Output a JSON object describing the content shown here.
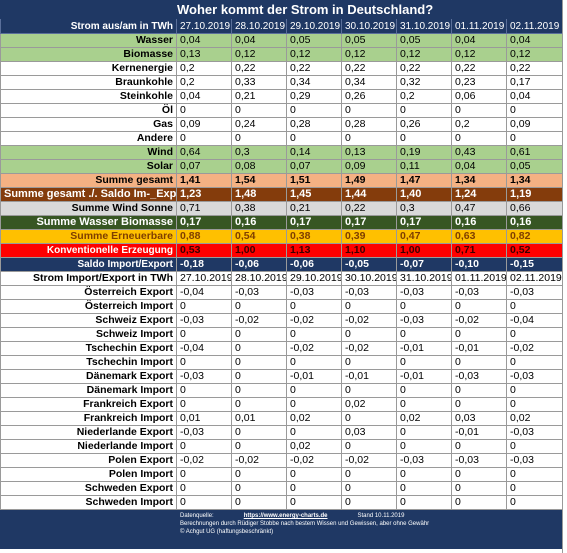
{
  "title": "Woher kommt der Strom in Deutschland?",
  "header": {
    "label": "Strom aus/am in TWh",
    "dates": [
      "27.10.2019",
      "28.10.2019",
      "29.10.2019",
      "30.10.2019",
      "31.10.2019",
      "01.11.2019",
      "02.11.2019"
    ]
  },
  "rows": [
    {
      "label": "Wasser",
      "style": "green",
      "values": [
        "0,04",
        "0,04",
        "0,05",
        "0,05",
        "0,05",
        "0,04",
        "0,04"
      ]
    },
    {
      "label": "Biomasse",
      "style": "green",
      "values": [
        "0,13",
        "0,12",
        "0,12",
        "0,12",
        "0,12",
        "0,12",
        "0,12"
      ]
    },
    {
      "label": "Kernenergie",
      "style": "white",
      "values": [
        "0,2",
        "0,22",
        "0,22",
        "0,22",
        "0,22",
        "0,22",
        "0,22"
      ]
    },
    {
      "label": "Braunkohle",
      "style": "white",
      "values": [
        "0,2",
        "0,33",
        "0,34",
        "0,34",
        "0,32",
        "0,23",
        "0,17"
      ]
    },
    {
      "label": "Steinkohle",
      "style": "white",
      "values": [
        "0,04",
        "0,21",
        "0,29",
        "0,26",
        "0,2",
        "0,06",
        "0,04"
      ]
    },
    {
      "label": "Öl",
      "style": "white",
      "values": [
        "0",
        "0",
        "0",
        "0",
        "0",
        "0",
        "0"
      ]
    },
    {
      "label": "Gas",
      "style": "white",
      "values": [
        "0,09",
        "0,24",
        "0,28",
        "0,28",
        "0,26",
        "0,2",
        "0,09"
      ]
    },
    {
      "label": "Andere",
      "style": "white",
      "values": [
        "0",
        "0",
        "0",
        "0",
        "0",
        "0",
        "0"
      ]
    },
    {
      "label": "Wind",
      "style": "green",
      "values": [
        "0,64",
        "0,3",
        "0,14",
        "0,13",
        "0,19",
        "0,43",
        "0,61"
      ]
    },
    {
      "label": "Solar",
      "style": "green",
      "values": [
        "0,07",
        "0,08",
        "0,07",
        "0,09",
        "0,11",
        "0,04",
        "0,05"
      ]
    },
    {
      "label": "Summe gesamt",
      "style": "orange",
      "values": [
        "1,41",
        "1,54",
        "1,51",
        "1,49",
        "1,47",
        "1,34",
        "1,34"
      ]
    },
    {
      "label": "Summe gesamt ./. Saldo Im-_Export",
      "style": "brown",
      "values": [
        "1,23",
        "1,48",
        "1,45",
        "1,44",
        "1,40",
        "1,24",
        "1,19"
      ]
    },
    {
      "label": "Summe Wind Sonne",
      "style": "grey",
      "values": [
        "0,71",
        "0,38",
        "0,21",
        "0,22",
        "0,3",
        "0,47",
        "0,66"
      ]
    },
    {
      "label": "Summe Wasser Biomasse",
      "style": "darkgreen",
      "values": [
        "0,17",
        "0,16",
        "0,17",
        "0,17",
        "0,17",
        "0,16",
        "0,16"
      ]
    },
    {
      "label": "Summe Erneuerbare",
      "style": "yellow",
      "values": [
        "0,88",
        "0,54",
        "0,38",
        "0,39",
        "0,47",
        "0,63",
        "0,82"
      ]
    },
    {
      "label": "Konventionelle Erzeugung",
      "style": "red",
      "values": [
        "0,53",
        "1,00",
        "1,13",
        "1,10",
        "1,00",
        "0,71",
        "0,52"
      ]
    },
    {
      "label": "Saldo Import/Export",
      "style": "navy",
      "values": [
        "-0,18",
        "-0,06",
        "-0,06",
        "-0,05",
        "-0,07",
        "-0,10",
        "-0,15"
      ]
    }
  ],
  "trade_header": {
    "label": "Strom Import/Export in TWh",
    "dates": [
      "27.10.2019",
      "28.10.2019",
      "29.10.2019",
      "30.10.2019",
      "31.10.2019",
      "01.11.2019",
      "02.11.2019"
    ]
  },
  "trade_rows": [
    {
      "label": "Österreich Export",
      "values": [
        "-0,04",
        "-0,03",
        "-0,03",
        "-0,03",
        "-0,03",
        "-0,03",
        "-0,03"
      ]
    },
    {
      "label": "Österreich Import",
      "values": [
        "0",
        "0",
        "0",
        "0",
        "0",
        "0",
        "0"
      ]
    },
    {
      "label": "Schweiz Export",
      "values": [
        "-0,03",
        "-0,02",
        "-0,02",
        "-0,02",
        "-0,03",
        "-0,02",
        "-0,04"
      ]
    },
    {
      "label": "Schweiz Import",
      "values": [
        "0",
        "0",
        "0",
        "0",
        "0",
        "0",
        "0"
      ]
    },
    {
      "label": "Tschechin Export",
      "values": [
        "-0,04",
        "0",
        "-0,02",
        "-0,02",
        "-0,01",
        "-0,01",
        "-0,02"
      ]
    },
    {
      "label": "Tschechin Import",
      "values": [
        "0",
        "0",
        "0",
        "0",
        "0",
        "0",
        "0"
      ]
    },
    {
      "label": "Dänemark Export",
      "values": [
        "-0,03",
        "0",
        "-0,01",
        "-0,01",
        "-0,01",
        "-0,03",
        "-0,03"
      ]
    },
    {
      "label": "Dänemark Import",
      "values": [
        "0",
        "0",
        "0",
        "0",
        "0",
        "0",
        "0"
      ]
    },
    {
      "label": "Frankreich Export",
      "values": [
        "0",
        "0",
        "0",
        "0,02",
        "0",
        "0",
        "0"
      ]
    },
    {
      "label": "Frankreich Import",
      "values": [
        "0,01",
        "0,01",
        "0,02",
        "0",
        "0,02",
        "0,03",
        "0,02"
      ]
    },
    {
      "label": "Niederlande Export",
      "values": [
        "-0,03",
        "0",
        "0",
        "0,03",
        "0",
        "-0,01",
        "-0,03"
      ]
    },
    {
      "label": "Niederlande Import",
      "values": [
        "0",
        "0",
        "0,02",
        "0",
        "0",
        "0",
        "0"
      ]
    },
    {
      "label": "Polen  Export",
      "values": [
        "-0,02",
        "-0,02",
        "-0,02",
        "-0,02",
        "-0,03",
        "-0,03",
        "-0,03"
      ]
    },
    {
      "label": "Polen Import",
      "values": [
        "0",
        "0",
        "0",
        "0",
        "0",
        "0",
        "0"
      ]
    },
    {
      "label": "Schweden Export",
      "values": [
        "0",
        "0",
        "0",
        "0",
        "0",
        "0",
        "0"
      ]
    },
    {
      "label": "Schweden Import",
      "values": [
        "0",
        "0",
        "0",
        "0",
        "0",
        "0",
        "0"
      ]
    }
  ],
  "footer": {
    "source_label": "Datenquelle:",
    "source_url": "https://www.energy-charts.de",
    "stand": "Stand 10.11.2019",
    "note": "Berechnungen durch Rüdiger Stobbe nach bestem Wissen und Gewissen, aber ohne Gewähr",
    "copyright": "© Achgut UG (haftungsbeschränkt)"
  },
  "colors": {
    "navy": "#1f3864",
    "green": "#a9d08e",
    "orange": "#f4b183",
    "brown": "#843c0c",
    "grey": "#d9d9d9",
    "darkgreen": "#375623",
    "yellow": "#ffc000",
    "red": "#ff0000"
  }
}
